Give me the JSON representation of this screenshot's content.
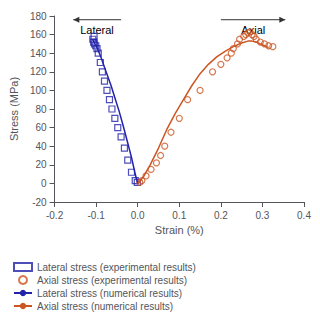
{
  "chart_data": {
    "type": "scatter",
    "xlabel": "Strain (%)",
    "ylabel": "Stress (MPa)",
    "xlim": [
      -0.2,
      0.4
    ],
    "ylim": [
      -20,
      180
    ],
    "xticks": [
      -0.2,
      -0.1,
      {
        "value": 0.0,
        "label": "0.0"
      },
      0.1,
      0.2,
      0.3,
      0.4
    ],
    "yticks": [
      -20,
      0,
      20,
      40,
      60,
      80,
      100,
      120,
      140,
      160,
      180
    ],
    "grid": false,
    "legend": "bottom",
    "series": [
      {
        "name": "Lateral stress (experimental results)",
        "type": "scatter",
        "marker": "square",
        "color": "#2222aa",
        "x": [
          -0.105,
          -0.108,
          -0.106,
          -0.104,
          -0.101,
          -0.098,
          -0.095,
          -0.09,
          -0.085,
          -0.08,
          -0.074,
          -0.068,
          -0.062,
          -0.055,
          -0.048,
          -0.04,
          -0.032,
          -0.024,
          -0.015,
          -0.006,
          -0.001
        ],
        "values": [
          158,
          155,
          152,
          150,
          148,
          145,
          140,
          130,
          120,
          110,
          100,
          90,
          80,
          70,
          60,
          50,
          38,
          25,
          12,
          3,
          1
        ]
      },
      {
        "name": "Axial stress (experimental results)",
        "type": "scatter",
        "marker": "circle",
        "color": "#cc5522",
        "x": [
          0.005,
          0.01,
          0.02,
          0.032,
          0.045,
          0.055,
          0.065,
          0.08,
          0.1,
          0.12,
          0.15,
          0.18,
          0.2,
          0.215,
          0.225,
          0.23,
          0.24,
          0.245,
          0.255,
          0.26,
          0.265,
          0.27,
          0.275,
          0.28,
          0.285,
          0.295,
          0.305,
          0.315,
          0.325
        ],
        "values": [
          1,
          3,
          8,
          15,
          22,
          30,
          40,
          55,
          70,
          90,
          100,
          120,
          128,
          135,
          140,
          145,
          150,
          155,
          158,
          160,
          162,
          163,
          160,
          158,
          155,
          152,
          150,
          148,
          147
        ]
      },
      {
        "name": "Lateral stress (numerical results)",
        "type": "line",
        "line_style": "solid",
        "color": "#2222aa",
        "x": [
          -0.108,
          -0.105,
          -0.103,
          -0.1,
          -0.095,
          -0.088,
          -0.08,
          -0.072,
          -0.064,
          -0.055,
          -0.045,
          -0.035,
          -0.025,
          -0.015,
          -0.007,
          -0.002,
          0.0
        ],
        "values": [
          155,
          152,
          150,
          148,
          143,
          135,
          125,
          115,
          105,
          92,
          78,
          62,
          45,
          28,
          12,
          3,
          0
        ]
      },
      {
        "name": "Axial stress (numerical results)",
        "type": "line",
        "line_style": "solid",
        "color": "#cc5522",
        "x": [
          0.0,
          0.005,
          0.015,
          0.03,
          0.05,
          0.07,
          0.09,
          0.11,
          0.13,
          0.15,
          0.17,
          0.19,
          0.21,
          0.23,
          0.25,
          0.265,
          0.275,
          0.285,
          0.295,
          0.305,
          0.315
        ],
        "values": [
          0,
          2,
          8,
          20,
          38,
          58,
          75,
          90,
          105,
          118,
          128,
          136,
          142,
          147,
          151,
          153,
          153,
          152,
          150,
          148,
          146
        ]
      }
    ],
    "annotations": [
      {
        "text": "Lateral",
        "x": -0.098,
        "y": 173,
        "arrow_from": -0.04,
        "arrow_to": -0.155,
        "arrow_y": 176
      },
      {
        "text": "Axial",
        "x": 0.278,
        "y": 173,
        "arrow_from": 0.2,
        "arrow_to": 0.355,
        "arrow_y": 176
      }
    ]
  }
}
